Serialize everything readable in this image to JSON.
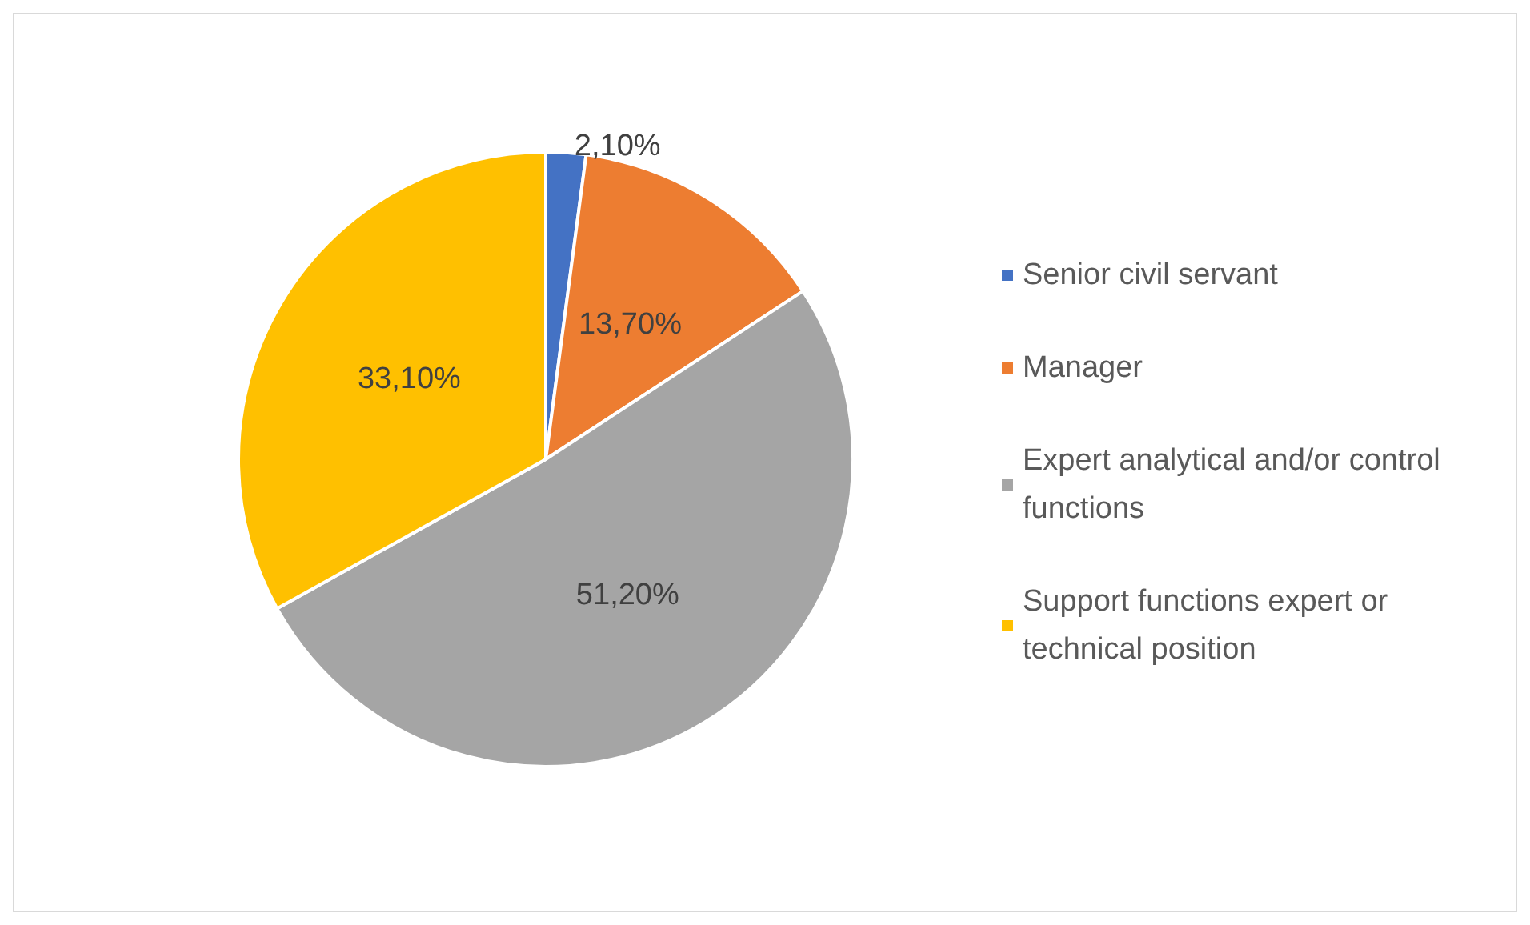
{
  "chart_data": {
    "type": "pie",
    "categories": [
      "Senior civil servant",
      "Manager",
      "Expert analytical and/or control functions",
      "Support functions expert or technical position"
    ],
    "values": [
      2.1,
      13.7,
      51.2,
      33.1
    ],
    "colors": [
      "#4472c4",
      "#ed7d31",
      "#a5a5a5",
      "#ffc000"
    ],
    "value_labels": [
      "2,10%",
      "13,70%",
      "51,20%",
      "33,10%"
    ],
    "legend": "right"
  }
}
